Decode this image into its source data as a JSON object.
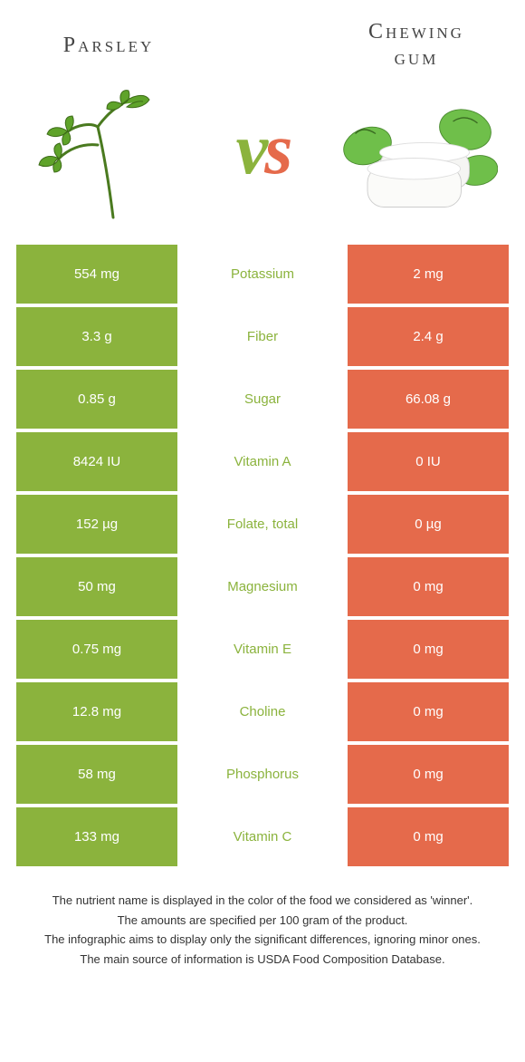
{
  "left_food": {
    "title": "Parsley"
  },
  "right_food": {
    "title": "Chewing\ngum"
  },
  "colors": {
    "green": "#8bb33d",
    "orange": "#e56a4b"
  },
  "rows": [
    {
      "nutrient": "Potassium",
      "left": "554 mg",
      "right": "2 mg",
      "winner": "left"
    },
    {
      "nutrient": "Fiber",
      "left": "3.3 g",
      "right": "2.4 g",
      "winner": "left"
    },
    {
      "nutrient": "Sugar",
      "left": "0.85 g",
      "right": "66.08 g",
      "winner": "left"
    },
    {
      "nutrient": "Vitamin A",
      "left": "8424 IU",
      "right": "0 IU",
      "winner": "left"
    },
    {
      "nutrient": "Folate, total",
      "left": "152 µg",
      "right": "0 µg",
      "winner": "left"
    },
    {
      "nutrient": "Magnesium",
      "left": "50 mg",
      "right": "0 mg",
      "winner": "left"
    },
    {
      "nutrient": "Vitamin E",
      "left": "0.75 mg",
      "right": "0 mg",
      "winner": "left"
    },
    {
      "nutrient": "Choline",
      "left": "12.8 mg",
      "right": "0 mg",
      "winner": "left"
    },
    {
      "nutrient": "Phosphorus",
      "left": "58 mg",
      "right": "0 mg",
      "winner": "left"
    },
    {
      "nutrient": "Vitamin C",
      "left": "133 mg",
      "right": "0 mg",
      "winner": "left"
    }
  ],
  "footer": [
    "The nutrient name is displayed in the color of the food we considered as 'winner'.",
    "The amounts are specified per 100 gram of the product.",
    "The infographic aims to display only the significant differences, ignoring minor ones.",
    "The main source of information is USDA Food Composition Database."
  ]
}
